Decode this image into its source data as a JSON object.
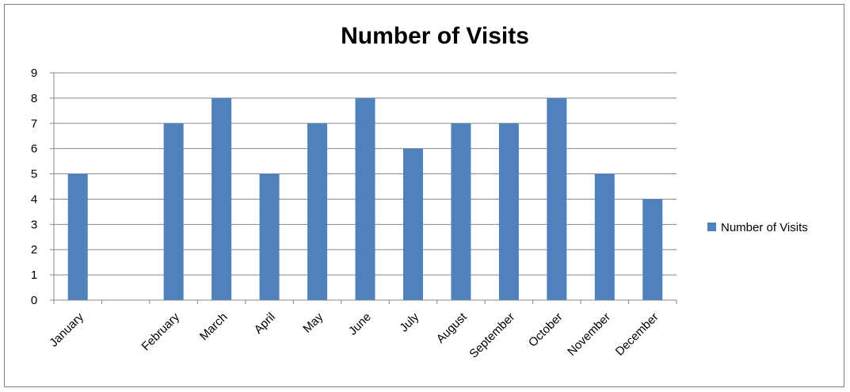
{
  "chart_data": {
    "type": "bar",
    "title": "Number of Visits",
    "xlabel": "",
    "ylabel": "",
    "categories": [
      "January",
      "",
      "February",
      "March",
      "April",
      "May",
      "June",
      "July",
      "August",
      "September",
      "October",
      "November",
      "December"
    ],
    "series": [
      {
        "name": "Number of Visits",
        "values": [
          5,
          null,
          7,
          8,
          5,
          7,
          8,
          6,
          7,
          7,
          8,
          5,
          4
        ]
      }
    ],
    "ylim": [
      0,
      9
    ],
    "yticks": [
      0,
      1,
      2,
      3,
      4,
      5,
      6,
      7,
      8,
      9
    ],
    "grid": true,
    "legend_position": "right",
    "colors": {
      "bar": "#4F81BD",
      "grid": "#878787",
      "axis": "#878787"
    }
  }
}
